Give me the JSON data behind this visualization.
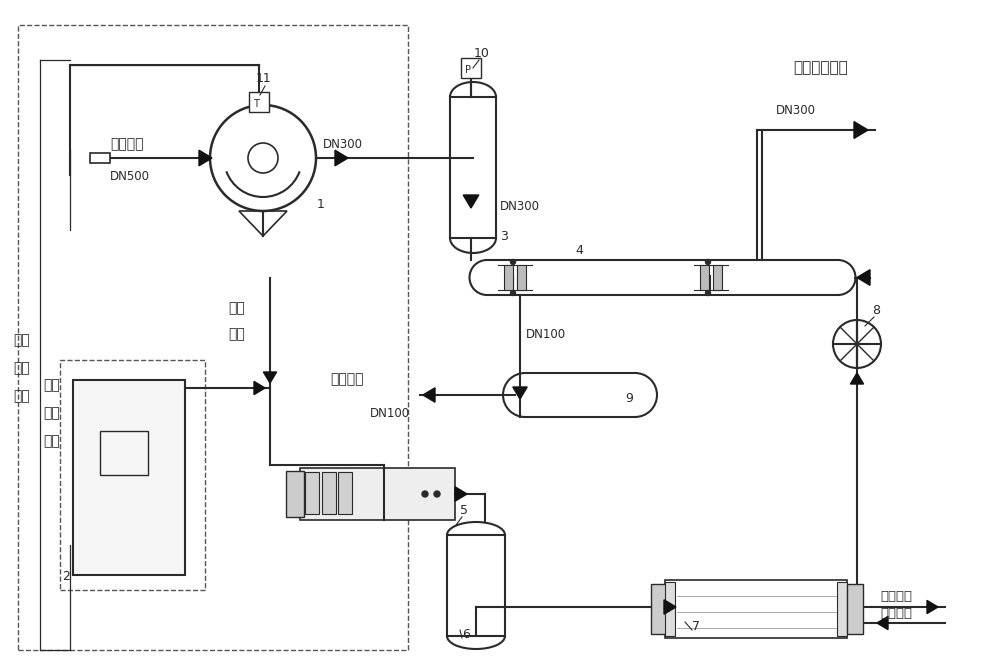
{
  "bg_color": "#ffffff",
  "line_color": "#2a2a2a",
  "labels": {
    "benzene_inlet": "苯气入口",
    "pressure_feedback": "压力反馈信号",
    "temp_feedback": "温度反馈信号",
    "control_signal": "控制信号",
    "clean_gas": "洁净气排放口",
    "liquid_benzene": "液苯出口",
    "cooling_water_out": "冷却水出",
    "cooling_water_in": "冷却水进",
    "DN500": "DN500",
    "DN300_1": "DN300",
    "DN300_2": "DN300",
    "DN300_3": "DN300",
    "DN100_1": "DN100",
    "DN100_2": "DN100"
  },
  "component_ids": [
    "1",
    "2",
    "3",
    "4",
    "5",
    "6",
    "7",
    "8",
    "9",
    "10",
    "11"
  ]
}
